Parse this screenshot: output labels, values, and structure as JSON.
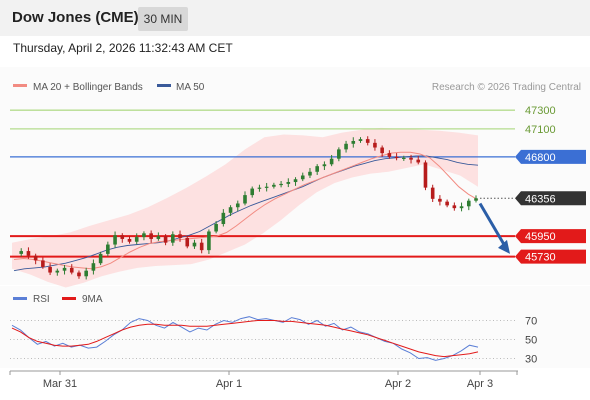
{
  "header": {
    "title": "Dow Jones (CME)",
    "timeframe": "30 MIN",
    "datetime": "Thursday, April 2, 2026 11:32:43 AM CET"
  },
  "legend": {
    "ma20": "MA 20 + Bollinger Bands",
    "ma50": "MA 50",
    "credit": "Research © 2026 Trading Central",
    "rsi": "RSI",
    "rsi_ma": "9MA"
  },
  "colors": {
    "ma20": "#f28b82",
    "ma50": "#3a5a9a",
    "resistance": "#b5dc8e",
    "pivot": "#3b6fd4",
    "support": "#e21a1a",
    "bb_fill": "#fddcdc",
    "candle_up": "#2e7d32",
    "candle_down": "#b71c1c",
    "rsi": "#5b7fd6",
    "rsi_ma": "#e21a1a",
    "arrow": "#2b5ea7",
    "last_price_label": "#333333"
  },
  "chart_data": [
    {
      "type": "candlestick",
      "title": "Dow Jones (CME)",
      "interval": "30 MIN",
      "x_labels": [
        "Mar 31",
        "Apr 1",
        "Apr 2",
        "Apr 3"
      ],
      "ylim": [
        45480,
        47420
      ],
      "levels": [
        {
          "value": 47300,
          "label": "47300",
          "kind": "resistance"
        },
        {
          "value": 47100,
          "label": "47100",
          "kind": "resistance"
        },
        {
          "value": 46800,
          "label": "46800",
          "kind": "pivot"
        },
        {
          "value": 45950,
          "label": "45950",
          "kind": "support"
        },
        {
          "value": 45730,
          "label": "45730",
          "kind": "support"
        }
      ],
      "last_price": {
        "value": 46356,
        "label": "46356"
      },
      "forecast_arrow": {
        "from": 46300,
        "to": 45760
      },
      "close_path": [
        45760,
        45790,
        45740,
        45690,
        45620,
        45560,
        45580,
        45610,
        45560,
        45520,
        45580,
        45660,
        45760,
        45860,
        45960,
        45920,
        45890,
        45940,
        45980,
        45920,
        45950,
        45880,
        45970,
        45930,
        45840,
        45880,
        45800,
        46000,
        46080,
        46200,
        46260,
        46300,
        46390,
        46460,
        46470,
        46480,
        46500,
        46510,
        46530,
        46560,
        46600,
        46640,
        46700,
        46720,
        46780,
        46880,
        46940,
        46970,
        46990,
        46950,
        46900,
        46840,
        46800,
        46790,
        46790,
        46770,
        46740,
        46470,
        46350,
        46320,
        46280,
        46250,
        46270,
        46330,
        46356
      ],
      "ma20_path": [
        45700,
        45710,
        45700,
        45680,
        45660,
        45640,
        45620,
        45610,
        45600,
        45620,
        45660,
        45720,
        45780,
        45830,
        45870,
        45890,
        45900,
        45910,
        45920,
        45930,
        45940,
        45950,
        45990,
        46060,
        46140,
        46220,
        46290,
        46350,
        46400,
        46450,
        46500,
        46540,
        46580,
        46620,
        46660,
        46700,
        46740,
        46780,
        46810,
        46840,
        46850,
        46850,
        46830,
        46790,
        46700,
        46590,
        46480,
        46400,
        46340
      ],
      "ma50_path": [
        45580,
        45600,
        45610,
        45620,
        45640,
        45660,
        45690,
        45720,
        45760,
        45800,
        45830,
        45850,
        45860,
        45870,
        45880,
        45900,
        45930,
        45960,
        46000,
        46060,
        46120,
        46180,
        46230,
        46280,
        46320,
        46360,
        46400,
        46440,
        46480,
        46530,
        46580,
        46620,
        46660,
        46700,
        46730,
        46760,
        46780,
        46790,
        46800,
        46810,
        46810,
        46790,
        46770,
        46740,
        46720,
        46710
      ],
      "bb_upper_path": [
        45880,
        45920,
        45950,
        45990,
        46060,
        46120,
        46180,
        46260,
        46360,
        46470,
        46590,
        46720,
        46880,
        47010,
        47040,
        47030,
        47010,
        47060,
        47090,
        47110,
        47100,
        47090,
        47080,
        47060,
        47030
      ],
      "bb_lower_path": [
        45600,
        45540,
        45460,
        45400,
        45450,
        45520,
        45570,
        45610,
        45630,
        45640,
        45650,
        45700,
        45780,
        45860,
        45980,
        46120,
        46280,
        46420,
        46520,
        46580,
        46620,
        46640,
        46680,
        46720,
        46660,
        46600,
        46480
      ]
    },
    {
      "type": "line",
      "series": [
        {
          "name": "RSI"
        },
        {
          "name": "9MA"
        }
      ],
      "ylim": [
        20,
        80
      ],
      "y_ticks": [
        70,
        50,
        30
      ],
      "rsi_path": [
        65,
        60,
        52,
        45,
        48,
        43,
        46,
        42,
        44,
        41,
        42,
        48,
        55,
        60,
        68,
        72,
        70,
        65,
        62,
        68,
        63,
        58,
        62,
        60,
        66,
        70,
        68,
        72,
        74,
        71,
        72,
        70,
        68,
        73,
        71,
        66,
        70,
        64,
        67,
        60,
        63,
        58,
        56,
        52,
        48,
        46,
        40,
        36,
        30,
        31,
        28,
        30,
        33,
        38,
        44,
        42
      ],
      "rsi_ma_path": [
        62,
        58,
        52,
        48,
        46,
        44,
        43,
        43,
        44,
        45,
        48,
        52,
        56,
        60,
        63,
        65,
        66,
        66,
        65,
        65,
        65,
        64,
        64,
        64,
        65,
        66,
        67,
        68,
        69,
        70,
        70,
        70,
        69,
        69,
        68,
        67,
        66,
        65,
        63,
        61,
        59,
        57,
        55,
        52,
        49,
        46,
        43,
        40,
        37,
        35,
        33,
        32,
        33,
        34,
        35,
        37
      ]
    }
  ]
}
